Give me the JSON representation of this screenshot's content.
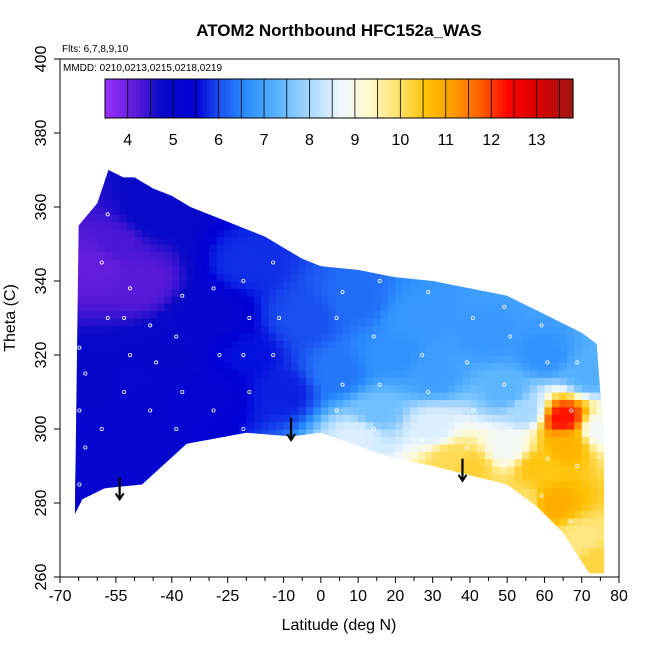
{
  "chart_data": {
    "type": "heatmap",
    "title": "ATOM2 Northbound HFC152a_WAS",
    "annotation_flights": "Flts: 6,7,8,9,10",
    "annotation_dates": "MMDD: 0210,0213,0215,0218,0219",
    "xlabel": "Latitude (deg N)",
    "ylabel": "Theta (C)",
    "xlim": [
      -70,
      80
    ],
    "ylim": [
      260,
      400
    ],
    "x_ticks": [
      -70,
      -55,
      -40,
      -25,
      -10,
      0,
      10,
      20,
      30,
      40,
      50,
      60,
      70,
      80
    ],
    "x_minor_ticks": [
      -65,
      -60,
      -50,
      -45,
      -35,
      -30,
      -20,
      -15,
      -5,
      5,
      15,
      25,
      35,
      45,
      55,
      65,
      75
    ],
    "y_ticks": [
      260,
      280,
      300,
      320,
      340,
      360,
      380,
      400
    ],
    "colorbar": {
      "min": 3.5,
      "max": 13.8,
      "labels": [
        4,
        5,
        6,
        7,
        8,
        9,
        10,
        11,
        12,
        13
      ],
      "stops": [
        {
          "v": 3.5,
          "c": "#9b30ff"
        },
        {
          "v": 4.2,
          "c": "#5a1ad8"
        },
        {
          "v": 4.7,
          "c": "#0a0ac8"
        },
        {
          "v": 5.5,
          "c": "#0000d8"
        },
        {
          "v": 6.0,
          "c": "#1a4ef0"
        },
        {
          "v": 6.6,
          "c": "#2a8cff"
        },
        {
          "v": 7.3,
          "c": "#5ab4ff"
        },
        {
          "v": 8.0,
          "c": "#a8d8ff"
        },
        {
          "v": 8.7,
          "c": "#f0f8ff"
        },
        {
          "v": 9.3,
          "c": "#fffacd"
        },
        {
          "v": 10.0,
          "c": "#ffe066"
        },
        {
          "v": 10.6,
          "c": "#ffc000"
        },
        {
          "v": 11.2,
          "c": "#ff9800"
        },
        {
          "v": 11.8,
          "c": "#ff5a00"
        },
        {
          "v": 12.4,
          "c": "#ff0000"
        },
        {
          "v": 13.1,
          "c": "#d40000"
        },
        {
          "v": 13.8,
          "c": "#a01818"
        }
      ]
    },
    "data_region_top": [
      [
        -65,
        355
      ],
      [
        -60,
        361
      ],
      [
        -57,
        370
      ],
      [
        -53,
        368
      ],
      [
        -50,
        368
      ],
      [
        -45,
        365
      ],
      [
        -40,
        363
      ],
      [
        -35,
        360
      ],
      [
        -30,
        358
      ],
      [
        -25,
        356
      ],
      [
        -20,
        354
      ],
      [
        -15,
        352
      ],
      [
        -10,
        349
      ],
      [
        -5,
        346
      ],
      [
        0,
        344
      ],
      [
        10,
        343
      ],
      [
        20,
        341
      ],
      [
        30,
        340
      ],
      [
        40,
        338
      ],
      [
        50,
        336
      ],
      [
        60,
        331
      ],
      [
        70,
        326
      ],
      [
        74,
        323
      ]
    ],
    "data_region_bottom": [
      [
        -66,
        277
      ],
      [
        -64,
        281
      ],
      [
        -58,
        284
      ],
      [
        -48,
        285
      ],
      [
        -36,
        296
      ],
      [
        -20,
        299
      ],
      [
        -8,
        298
      ],
      [
        0,
        299
      ],
      [
        14,
        294
      ],
      [
        20,
        292
      ],
      [
        30,
        290
      ],
      [
        38,
        288
      ],
      [
        50,
        285
      ],
      [
        58,
        279
      ],
      [
        65,
        272
      ],
      [
        72,
        261
      ],
      [
        76,
        261
      ],
      [
        76,
        300
      ],
      [
        75,
        310
      ],
      [
        74,
        323
      ]
    ],
    "concentration_field": [
      {
        "lat": -60,
        "theta": 345,
        "v": 4.1
      },
      {
        "lat": -55,
        "theta": 350,
        "v": 4.3
      },
      {
        "lat": -48,
        "theta": 340,
        "v": 4.2
      },
      {
        "lat": -45,
        "theta": 358,
        "v": 4.8
      },
      {
        "lat": -62,
        "theta": 310,
        "v": 4.9
      },
      {
        "lat": -58,
        "theta": 295,
        "v": 5.0
      },
      {
        "lat": -50,
        "theta": 300,
        "v": 5.1
      },
      {
        "lat": -40,
        "theta": 320,
        "v": 4.9
      },
      {
        "lat": -30,
        "theta": 330,
        "v": 5.0
      },
      {
        "lat": -30,
        "theta": 310,
        "v": 5.2
      },
      {
        "lat": -20,
        "theta": 320,
        "v": 5.6
      },
      {
        "lat": -20,
        "theta": 345,
        "v": 5.8
      },
      {
        "lat": -10,
        "theta": 310,
        "v": 5.7
      },
      {
        "lat": -5,
        "theta": 330,
        "v": 6.0
      },
      {
        "lat": 5,
        "theta": 315,
        "v": 6.4
      },
      {
        "lat": 10,
        "theta": 335,
        "v": 6.3
      },
      {
        "lat": 15,
        "theta": 305,
        "v": 7.5
      },
      {
        "lat": 10,
        "theta": 298,
        "v": 8.5
      },
      {
        "lat": 20,
        "theta": 320,
        "v": 6.7
      },
      {
        "lat": 25,
        "theta": 330,
        "v": 6.8
      },
      {
        "lat": 30,
        "theta": 315,
        "v": 6.9
      },
      {
        "lat": 30,
        "theta": 300,
        "v": 8.5
      },
      {
        "lat": 35,
        "theta": 292,
        "v": 10.1
      },
      {
        "lat": 40,
        "theta": 290,
        "v": 10.3
      },
      {
        "lat": 45,
        "theta": 325,
        "v": 6.8
      },
      {
        "lat": 50,
        "theta": 310,
        "v": 7.3
      },
      {
        "lat": 50,
        "theta": 295,
        "v": 8.8
      },
      {
        "lat": 55,
        "theta": 305,
        "v": 8.0
      },
      {
        "lat": 55,
        "theta": 280,
        "v": 10.0
      },
      {
        "lat": 58,
        "theta": 290,
        "v": 10.5
      },
      {
        "lat": 60,
        "theta": 320,
        "v": 6.7
      },
      {
        "lat": 62,
        "theta": 280,
        "v": 10.9
      },
      {
        "lat": 65,
        "theta": 303,
        "v": 12.3
      },
      {
        "lat": 66,
        "theta": 296,
        "v": 10.8
      },
      {
        "lat": 70,
        "theta": 270,
        "v": 9.8
      },
      {
        "lat": 72,
        "theta": 315,
        "v": 7.2
      },
      {
        "lat": 74,
        "theta": 265,
        "v": 10.2
      },
      {
        "lat": 75,
        "theta": 300,
        "v": 8.8
      }
    ],
    "arrows": [
      {
        "lat": -54,
        "theta_top": 287,
        "theta_bottom": 281
      },
      {
        "lat": -8,
        "theta_top": 303,
        "theta_bottom": 297
      },
      {
        "lat": 38,
        "theta_top": 292,
        "theta_bottom": 286
      }
    ],
    "sample_tracks": [
      {
        "lat": -64,
        "theta": [
          285,
          295,
          305,
          315,
          322
        ]
      },
      {
        "lat": -58,
        "theta": [
          300,
          330,
          345,
          358
        ]
      },
      {
        "lat": -52,
        "theta": [
          310,
          320,
          330,
          338
        ]
      },
      {
        "lat": -45,
        "theta": [
          305,
          318,
          328
        ]
      },
      {
        "lat": -38,
        "theta": [
          300,
          310,
          325,
          336
        ]
      },
      {
        "lat": -28,
        "theta": [
          305,
          320,
          338
        ]
      },
      {
        "lat": -20,
        "theta": [
          300,
          310,
          320,
          330,
          340
        ]
      },
      {
        "lat": -12,
        "theta": [
          320,
          330,
          345
        ]
      },
      {
        "lat": 5,
        "theta": [
          305,
          312,
          330,
          337
        ]
      },
      {
        "lat": 15,
        "theta": [
          300,
          312,
          325,
          340
        ]
      },
      {
        "lat": 28,
        "theta": [
          297,
          310,
          320,
          337
        ]
      },
      {
        "lat": 40,
        "theta": [
          295,
          305,
          318,
          330
        ]
      },
      {
        "lat": 50,
        "theta": [
          290,
          300,
          312,
          325,
          333
        ]
      },
      {
        "lat": 60,
        "theta": [
          282,
          292,
          305,
          318,
          328
        ]
      },
      {
        "lat": 68,
        "theta": [
          275,
          290,
          305,
          318
        ]
      }
    ]
  }
}
